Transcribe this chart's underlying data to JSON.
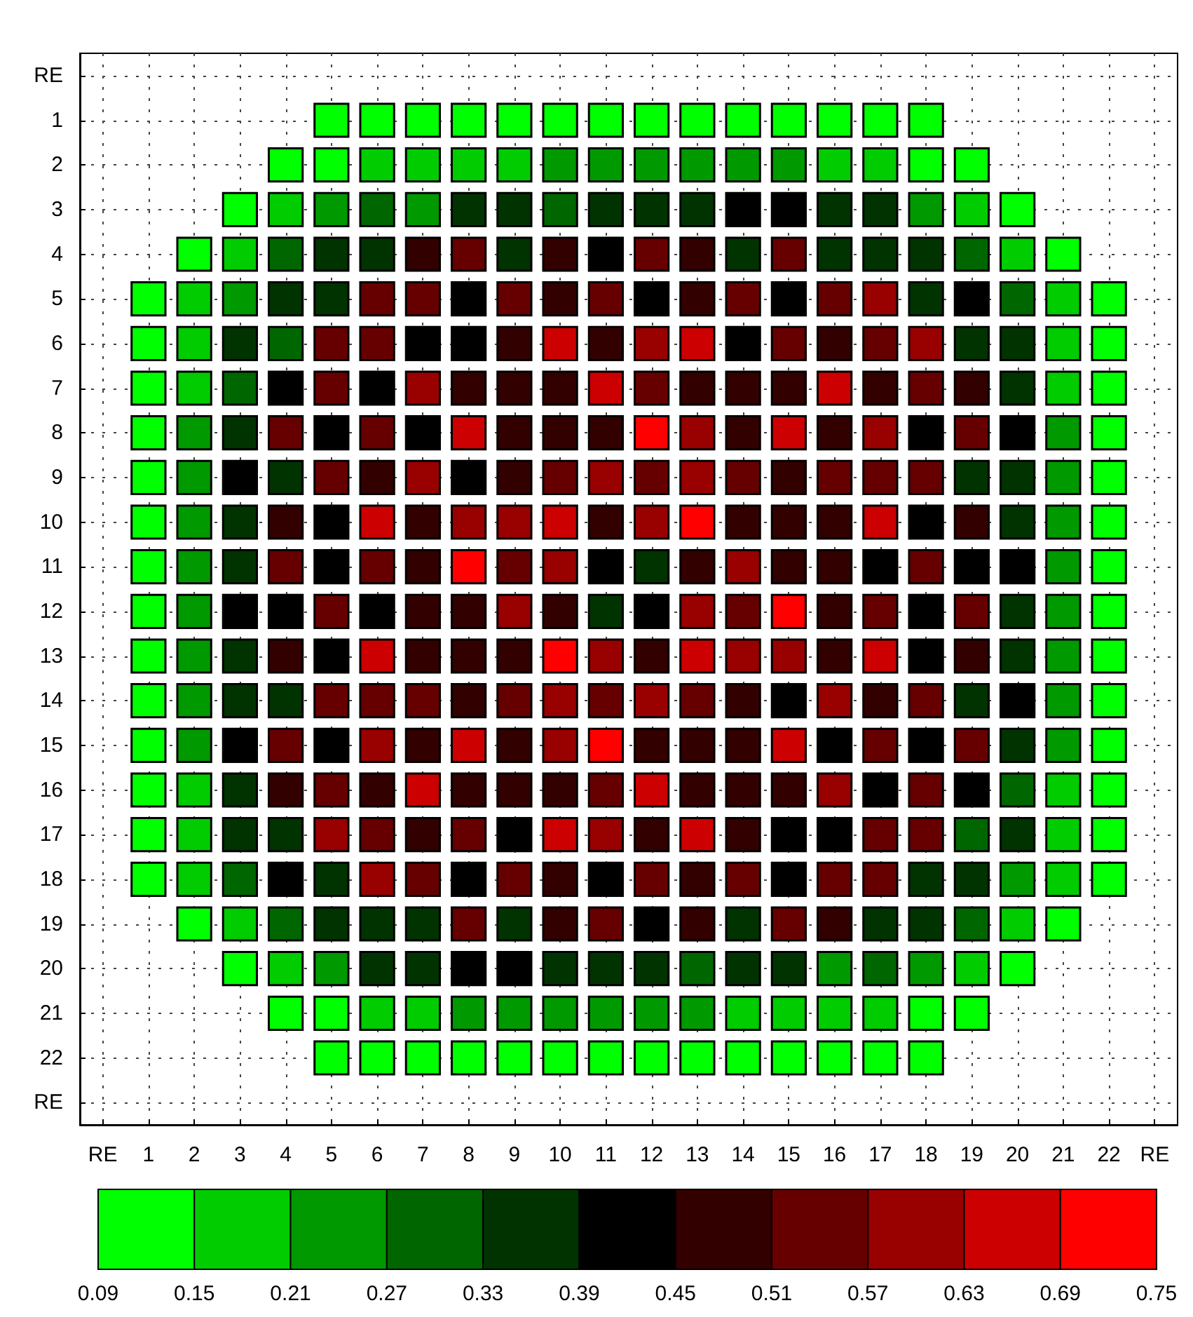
{
  "chart_data": {
    "type": "heatmap",
    "categories": [
      "RE",
      "1",
      "2",
      "3",
      "4",
      "5",
      "6",
      "7",
      "8",
      "9",
      "10",
      "11",
      "12",
      "13",
      "14",
      "15",
      "16",
      "17",
      "18",
      "19",
      "20",
      "21",
      "22",
      "RE"
    ],
    "y_categories": [
      "RE",
      "1",
      "2",
      "3",
      "4",
      "5",
      "6",
      "7",
      "8",
      "9",
      "10",
      "11",
      "12",
      "13",
      "14",
      "15",
      "16",
      "17",
      "18",
      "19",
      "20",
      "21",
      "22",
      "RE"
    ],
    "cells": [
      [
        null,
        null,
        null,
        null,
        null,
        null,
        null,
        null,
        null,
        null,
        null,
        null,
        null,
        null,
        null,
        null,
        null,
        null,
        null,
        null,
        null,
        null,
        null,
        null
      ],
      [
        null,
        null,
        null,
        null,
        null,
        0.12,
        0.12,
        0.12,
        0.12,
        0.12,
        0.12,
        0.12,
        0.12,
        0.12,
        0.12,
        0.12,
        0.12,
        0.12,
        0.12,
        null,
        null,
        null,
        null,
        null
      ],
      [
        null,
        null,
        null,
        null,
        0.12,
        0.12,
        0.18,
        0.18,
        0.18,
        0.18,
        0.24,
        0.24,
        0.24,
        0.24,
        0.24,
        0.24,
        0.18,
        0.18,
        0.12,
        0.12,
        null,
        null,
        null,
        null
      ],
      [
        null,
        null,
        null,
        0.12,
        0.18,
        0.24,
        0.3,
        0.24,
        0.36,
        0.36,
        0.3,
        0.36,
        0.36,
        0.36,
        0.42,
        0.42,
        0.36,
        0.36,
        0.24,
        0.18,
        0.12,
        null,
        null,
        null
      ],
      [
        null,
        null,
        0.12,
        0.18,
        0.3,
        0.36,
        0.36,
        0.48,
        0.54,
        0.36,
        0.48,
        0.42,
        0.54,
        0.48,
        0.36,
        0.54,
        0.36,
        0.36,
        0.36,
        0.3,
        0.18,
        0.12,
        null,
        null
      ],
      [
        null,
        0.12,
        0.18,
        0.24,
        0.36,
        0.36,
        0.54,
        0.54,
        0.42,
        0.54,
        0.48,
        0.54,
        0.42,
        0.48,
        0.54,
        0.42,
        0.54,
        0.6,
        0.36,
        0.42,
        0.3,
        0.18,
        0.12,
        null
      ],
      [
        null,
        0.12,
        0.18,
        0.36,
        0.3,
        0.54,
        0.54,
        0.42,
        0.42,
        0.48,
        0.66,
        0.48,
        0.6,
        0.66,
        0.42,
        0.54,
        0.48,
        0.54,
        0.6,
        0.36,
        0.36,
        0.18,
        0.12,
        null
      ],
      [
        null,
        0.12,
        0.18,
        0.3,
        0.42,
        0.54,
        0.42,
        0.6,
        0.48,
        0.48,
        0.48,
        0.66,
        0.54,
        0.48,
        0.48,
        0.48,
        0.66,
        0.48,
        0.54,
        0.48,
        0.36,
        0.18,
        0.12,
        null
      ],
      [
        null,
        0.12,
        0.24,
        0.36,
        0.54,
        0.42,
        0.54,
        0.42,
        0.66,
        0.48,
        0.48,
        0.48,
        0.72,
        0.6,
        0.48,
        0.66,
        0.48,
        0.6,
        0.42,
        0.54,
        0.42,
        0.24,
        0.12,
        null
      ],
      [
        null,
        0.12,
        0.24,
        0.42,
        0.36,
        0.54,
        0.48,
        0.6,
        0.42,
        0.48,
        0.54,
        0.6,
        0.54,
        0.6,
        0.54,
        0.48,
        0.54,
        0.54,
        0.54,
        0.36,
        0.36,
        0.24,
        0.12,
        null
      ],
      [
        null,
        0.12,
        0.24,
        0.36,
        0.48,
        0.42,
        0.66,
        0.48,
        0.6,
        0.6,
        0.66,
        0.48,
        0.6,
        0.72,
        0.48,
        0.48,
        0.48,
        0.66,
        0.42,
        0.48,
        0.36,
        0.24,
        0.12,
        null
      ],
      [
        null,
        0.12,
        0.24,
        0.36,
        0.54,
        0.42,
        0.54,
        0.48,
        0.72,
        0.54,
        0.6,
        0.42,
        0.36,
        0.48,
        0.6,
        0.48,
        0.48,
        0.42,
        0.54,
        0.42,
        0.42,
        0.24,
        0.12,
        null
      ],
      [
        null,
        0.12,
        0.24,
        0.42,
        0.42,
        0.54,
        0.42,
        0.48,
        0.48,
        0.6,
        0.48,
        0.36,
        0.42,
        0.6,
        0.54,
        0.72,
        0.48,
        0.54,
        0.42,
        0.54,
        0.36,
        0.24,
        0.12,
        null
      ],
      [
        null,
        0.12,
        0.24,
        0.36,
        0.48,
        0.42,
        0.66,
        0.48,
        0.48,
        0.48,
        0.72,
        0.6,
        0.48,
        0.66,
        0.6,
        0.6,
        0.48,
        0.66,
        0.42,
        0.48,
        0.36,
        0.24,
        0.12,
        null
      ],
      [
        null,
        0.12,
        0.24,
        0.36,
        0.36,
        0.54,
        0.54,
        0.54,
        0.48,
        0.54,
        0.6,
        0.54,
        0.6,
        0.54,
        0.48,
        0.42,
        0.6,
        0.48,
        0.54,
        0.36,
        0.42,
        0.24,
        0.12,
        null
      ],
      [
        null,
        0.12,
        0.24,
        0.42,
        0.54,
        0.42,
        0.6,
        0.48,
        0.66,
        0.48,
        0.6,
        0.72,
        0.48,
        0.48,
        0.48,
        0.66,
        0.42,
        0.54,
        0.42,
        0.54,
        0.36,
        0.24,
        0.12,
        null
      ],
      [
        null,
        0.12,
        0.18,
        0.36,
        0.48,
        0.54,
        0.48,
        0.66,
        0.48,
        0.48,
        0.48,
        0.54,
        0.66,
        0.48,
        0.48,
        0.48,
        0.6,
        0.42,
        0.54,
        0.42,
        0.3,
        0.18,
        0.12,
        null
      ],
      [
        null,
        0.12,
        0.18,
        0.36,
        0.36,
        0.6,
        0.54,
        0.48,
        0.54,
        0.42,
        0.66,
        0.6,
        0.48,
        0.66,
        0.48,
        0.42,
        0.42,
        0.54,
        0.54,
        0.3,
        0.36,
        0.18,
        0.12,
        null
      ],
      [
        null,
        0.12,
        0.18,
        0.3,
        0.42,
        0.36,
        0.6,
        0.54,
        0.42,
        0.54,
        0.48,
        0.42,
        0.54,
        0.48,
        0.54,
        0.42,
        0.54,
        0.54,
        0.36,
        0.36,
        0.24,
        0.18,
        0.12,
        null
      ],
      [
        null,
        null,
        0.12,
        0.18,
        0.3,
        0.36,
        0.36,
        0.36,
        0.54,
        0.36,
        0.48,
        0.54,
        0.42,
        0.48,
        0.36,
        0.54,
        0.48,
        0.36,
        0.36,
        0.3,
        0.18,
        0.12,
        null,
        null
      ],
      [
        null,
        null,
        null,
        0.12,
        0.18,
        0.24,
        0.36,
        0.36,
        0.42,
        0.42,
        0.36,
        0.36,
        0.36,
        0.3,
        0.36,
        0.36,
        0.24,
        0.3,
        0.24,
        0.18,
        0.12,
        null,
        null,
        null
      ],
      [
        null,
        null,
        null,
        null,
        0.12,
        0.12,
        0.18,
        0.18,
        0.24,
        0.24,
        0.24,
        0.24,
        0.24,
        0.24,
        0.18,
        0.18,
        0.18,
        0.18,
        0.12,
        0.12,
        null,
        null,
        null,
        null
      ],
      [
        null,
        null,
        null,
        null,
        null,
        0.12,
        0.12,
        0.12,
        0.12,
        0.12,
        0.12,
        0.12,
        0.12,
        0.12,
        0.12,
        0.12,
        0.12,
        0.12,
        0.12,
        null,
        null,
        null,
        null,
        null
      ],
      [
        null,
        null,
        null,
        null,
        null,
        null,
        null,
        null,
        null,
        null,
        null,
        null,
        null,
        null,
        null,
        null,
        null,
        null,
        null,
        null,
        null,
        null,
        null,
        null
      ]
    ],
    "clim": [
      0.09,
      0.75
    ],
    "cticks": [
      0.09,
      0.15,
      0.21,
      0.27,
      0.33,
      0.39,
      0.45,
      0.51,
      0.57,
      0.63,
      0.69,
      0.75
    ],
    "colors": [
      "#00ff00",
      "#00cc00",
      "#009900",
      "#006600",
      "#003300",
      "#000000",
      "#330000",
      "#660000",
      "#990000",
      "#cc0000",
      "#ff0000"
    ],
    "grid": true
  }
}
